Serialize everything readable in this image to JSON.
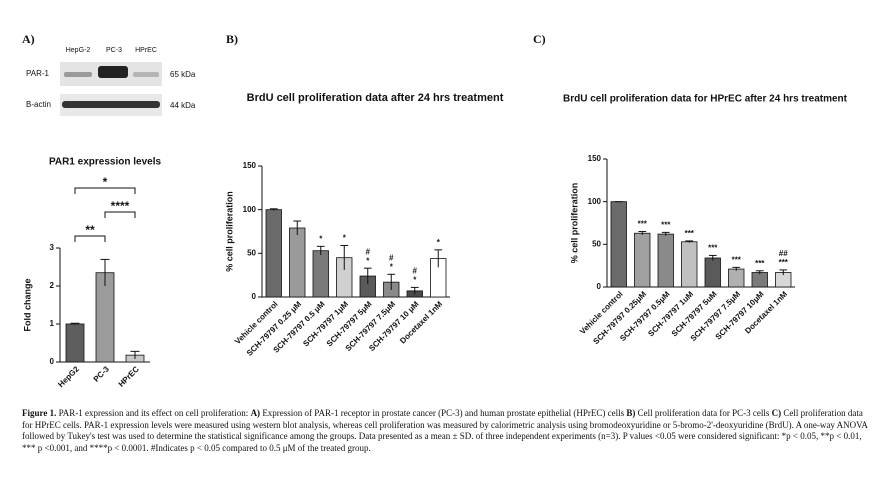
{
  "panel_labels": [
    "A)",
    "B)",
    "C)"
  ],
  "blot": {
    "lanes": [
      "HepG-2",
      "PC-3",
      "HPrEC"
    ],
    "rows": [
      {
        "label": "PAR-1",
        "size": "65 kDa"
      },
      {
        "label": "B-actin",
        "size": "44 kDa"
      }
    ]
  },
  "chart_data": [
    {
      "type": "bar",
      "title": "PAR1 expression levels",
      "y_label": "Fold change",
      "categories": [
        "HepG2",
        "PC-3",
        "HPrEC"
      ],
      "values": [
        1,
        2.35,
        0.18
      ],
      "errors": [
        0.02,
        0.35,
        0.1
      ],
      "colors": [
        "#5e5e5e",
        "#9b9b9b",
        "#c8c8c8"
      ],
      "ylim": [
        0,
        3
      ],
      "yticks": [
        0,
        1,
        2,
        3
      ],
      "brackets": [
        {
          "from": 0,
          "to": 1,
          "label": "**"
        },
        {
          "from": 1,
          "to": 2,
          "label": "****"
        },
        {
          "from": 0,
          "to": 2,
          "label": "*"
        }
      ]
    },
    {
      "type": "bar",
      "title": "BrdU cell proliferation data after 24 hrs treatment",
      "y_label": "% cell proliferation",
      "categories": [
        "Vehicle control",
        "SCH-79797 0.25 μM",
        "SCH-79797 0.5 μM",
        "SCH-79797 1μM",
        "SCH-79797 5μM",
        "SCH-79797 7.5μM",
        "SCH-79797 10 μM",
        "Docetaxel 1nM"
      ],
      "values": [
        100,
        79,
        53,
        45,
        24,
        17,
        7,
        44
      ],
      "errors": [
        1,
        8,
        5,
        14,
        9,
        9,
        4,
        10
      ],
      "annotations": [
        null,
        null,
        [
          "*"
        ],
        [
          "*"
        ],
        [
          "#",
          "*"
        ],
        [
          "#",
          "*"
        ],
        [
          "#",
          "*"
        ],
        [
          "*"
        ]
      ],
      "colors": [
        "#6b6b6b",
        "#9a9a9a",
        "#7a7a7a",
        "#d0d0d0",
        "#5a5a5a",
        "#8a8a8a",
        "#4a4a4a",
        "#ffffff"
      ],
      "ylim": [
        0,
        150
      ],
      "yticks": [
        0,
        50,
        100,
        150
      ]
    },
    {
      "type": "bar",
      "title": "BrdU cell proliferation data for HPrEC after 24 hrs treatment",
      "y_label": "% cell proliferation",
      "categories": [
        "Vehicle control",
        "SCH-79797 0.25μM",
        "SCH-79797 0.5μM",
        "SCH-79797 1uM",
        "SCH-79797 5uM",
        "SCH-79797 7.5μM",
        "SCH-79797 10μM",
        "Docetaxel 1nM"
      ],
      "values": [
        100,
        63,
        62,
        53,
        34,
        21,
        17,
        17
      ],
      "errors": [
        0,
        2,
        2,
        1,
        3,
        2,
        2,
        3
      ],
      "annotations": [
        null,
        [
          "***"
        ],
        [
          "***"
        ],
        [
          "***"
        ],
        [
          "***"
        ],
        [
          "***"
        ],
        [
          "***"
        ],
        [
          "##",
          "***"
        ]
      ],
      "colors": [
        "#6b6b6b",
        "#a0a0a0",
        "#8a8a8a",
        "#c0c0c0",
        "#5a5a5a",
        "#b0b0b0",
        "#7a7a7a",
        "#d8d8d8"
      ],
      "ylim": [
        0,
        150
      ],
      "yticks": [
        0,
        50,
        100,
        150
      ]
    }
  ],
  "caption": [
    "Figure 1.",
    " PAR-1 expression and its effect on cell proliferation: ",
    "A)",
    " Expression of PAR-1 receptor in prostate cancer (PC-3) and human prostate epithelial (HPrEC) cells ",
    "B)",
    " Cell proliferation data for PC-3 cells ",
    "C)",
    " Cell proliferation data for HPrEC cells. PAR-1 expression levels were measured using western blot analysis, whereas cell proliferation was measured by calorimetric analysis using bromodeoxyuridine or 5-bromo-2'-deoxyuridine (BrdU). A one-way ANOVA followed by Tukey's test was used to determine the statistical significance among the groups. Data presented as a mean ± SD. of three independent experiments (n=3). P values <0.05 were considered significant: *p < 0.05, **p < 0.01, *** p <0.001, and ****p < 0.0001. #Indicates p < 0.05 compared to 0.5 μM of the treated group."
  ]
}
